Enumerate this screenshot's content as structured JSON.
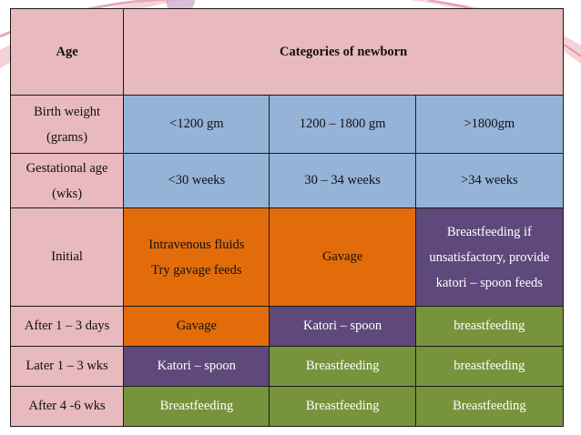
{
  "colors": {
    "pink": "#e8b9bd",
    "blue": "#95b3d7",
    "orange": "#e36c0a",
    "purple": "#5f497a",
    "green": "#77933c",
    "border": "#1a1a1a",
    "decor_ribbon": "#d66f86"
  },
  "table": {
    "header": {
      "age": "Age",
      "categories": "Categories of newborn"
    },
    "birth_weight": {
      "label_line1": "Birth weight",
      "label_line2": "(grams)",
      "cells": [
        "<1200 gm",
        "1200 – 1800 gm",
        ">1800gm"
      ]
    },
    "gestational_age": {
      "label_line1": "Gestational age",
      "label_line2": "(wks)",
      "cells": [
        "<30 weeks",
        "30 – 34 weeks",
        ">34 weeks"
      ]
    },
    "initial": {
      "label": "Initial",
      "cell1_line1": "Intravenous fluids",
      "cell1_line2": "Try gavage feeds",
      "cell2": "Gavage",
      "cell3_line1": "Breastfeeding if",
      "cell3_line2": "unsatisfactory, provide",
      "cell3_line3": "katori – spoon feeds"
    },
    "after_1_3_days": {
      "label": "After 1 – 3 days",
      "cells": [
        "Gavage",
        "Katori – spoon",
        "breastfeeding"
      ]
    },
    "later_1_3_wks": {
      "label": "Later 1 – 3 wks",
      "cells": [
        "Katori – spoon",
        "Breastfeeding",
        "breastfeeding"
      ]
    },
    "after_4_6_wks": {
      "label": "After 4 -6 wks",
      "cells": [
        "Breastfeeding",
        "Breastfeeding",
        "Breastfeeding"
      ]
    }
  }
}
